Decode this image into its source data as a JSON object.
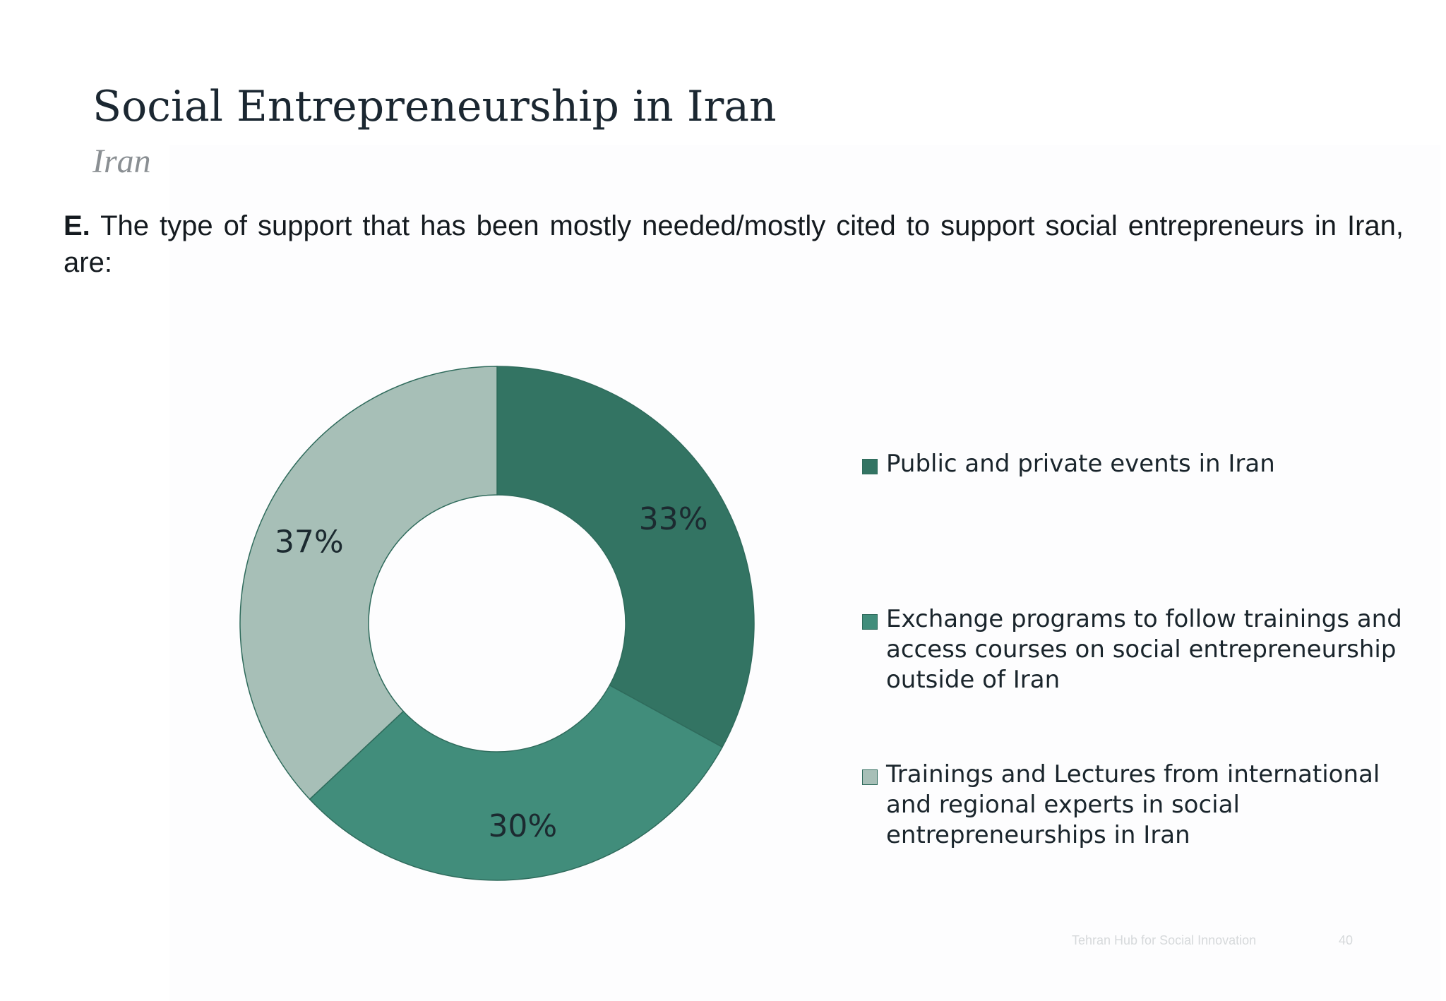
{
  "header": {
    "title": "Social Entrepreneurship in Iran",
    "subtitle": "Iran"
  },
  "intro": {
    "marker": "E.",
    "text": "The type of support that has been mostly needed/mostly cited to support social entrepreneurs in Iran, are:"
  },
  "chart_data": {
    "type": "pie",
    "variant": "donut",
    "title": "",
    "categories": [
      "Public and private events in Iran",
      "Exchange programs to follow trainings and access courses on social entrepreneurship outside of Iran",
      "Trainings and Lectures from international and regional experts in social entrepreneurships in Iran"
    ],
    "values": [
      33,
      30,
      37
    ],
    "data_labels": [
      "33%",
      "30%",
      "37%"
    ],
    "colors": [
      "#337463",
      "#418d7b",
      "#a7bfb7"
    ],
    "legend_placement": "right",
    "start_angle": "12 o'clock, clockwise"
  },
  "legend": [
    {
      "label": "Public and private events in Iran",
      "color": "#337463"
    },
    {
      "label": "Exchange programs to follow trainings and access courses on social entrepreneurship outside of Iran",
      "color": "#418d7b"
    },
    {
      "label": "Trainings and Lectures from international and regional experts in social entrepreneurships in Iran",
      "color": "#a7bfb7"
    }
  ],
  "footer": {
    "text": "Tehran Hub for Social Innovation",
    "page": "40"
  }
}
